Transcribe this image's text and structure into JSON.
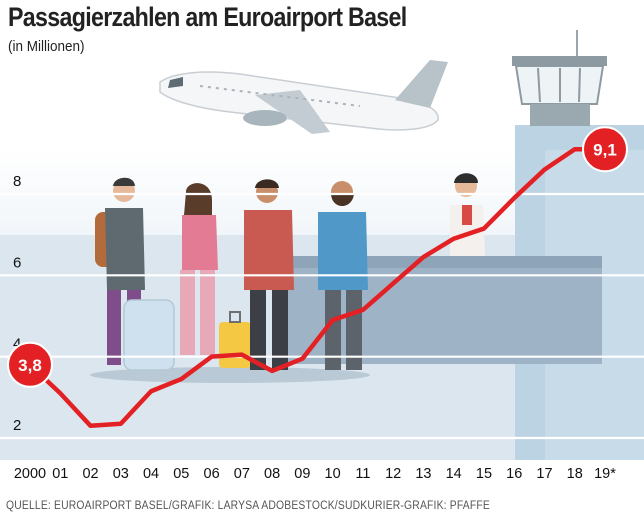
{
  "chart_data": {
    "type": "line",
    "title": "Passagierzahlen am Euroairport Basel",
    "subtitle": "(in Millionen)",
    "categories": [
      "2000",
      "01",
      "02",
      "03",
      "04",
      "05",
      "06",
      "07",
      "08",
      "09",
      "10",
      "11",
      "12",
      "13",
      "14",
      "15",
      "16",
      "17",
      "18",
      "19*"
    ],
    "values": [
      3.8,
      3.1,
      2.3,
      2.35,
      3.15,
      3.45,
      4.0,
      4.05,
      3.65,
      3.95,
      4.9,
      5.15,
      5.8,
      6.45,
      6.9,
      7.15,
      7.9,
      8.6,
      9.1,
      9.1
    ],
    "yticks": [
      2,
      4,
      6,
      8
    ],
    "ylim": [
      1.6,
      9.6
    ],
    "line_color": "#e32124",
    "grid": true,
    "data_labels": [
      {
        "index": 0,
        "text": "3,8"
      },
      {
        "index": 19,
        "text": "9,1"
      }
    ]
  },
  "footer": {
    "source": "QUELLE: EUROAIRPORT BASEL/GRAFIK: LARYSA ADOBESTOCK/SÜDKURIER-GRAFIK: PFAFFE"
  },
  "colors": {
    "background_panel": "#d6e4ef",
    "line": "#e32124",
    "grid": "#ffffff"
  }
}
